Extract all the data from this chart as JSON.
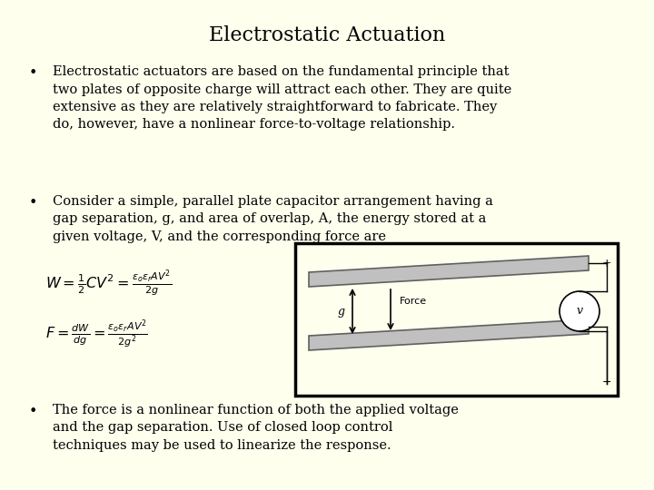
{
  "background_color": "#FFFFEE",
  "title": "Electrostatic Actuation",
  "title_fontsize": 16,
  "bullet1": "Electrostatic actuators are based on the fundamental principle that\ntwo plates of opposite charge will attract each other. They are quite\nextensive as they are relatively straightforward to fabricate. They\ndo, however, have a nonlinear force-to-voltage relationship.",
  "bullet2": "Consider a simple, parallel plate capacitor arrangement having a\ngap separation, g, and area of overlap, A, the energy stored at a\ngiven voltage, V, and the corresponding force are",
  "bullet3": "The force is a nonlinear function of both the applied voltage\nand the gap separation. Use of closed loop control\ntechniques may be used to linearize the response.",
  "text_color": "#000000",
  "bullet_fontsize": 10.5,
  "eq_fontsize": 11.5
}
